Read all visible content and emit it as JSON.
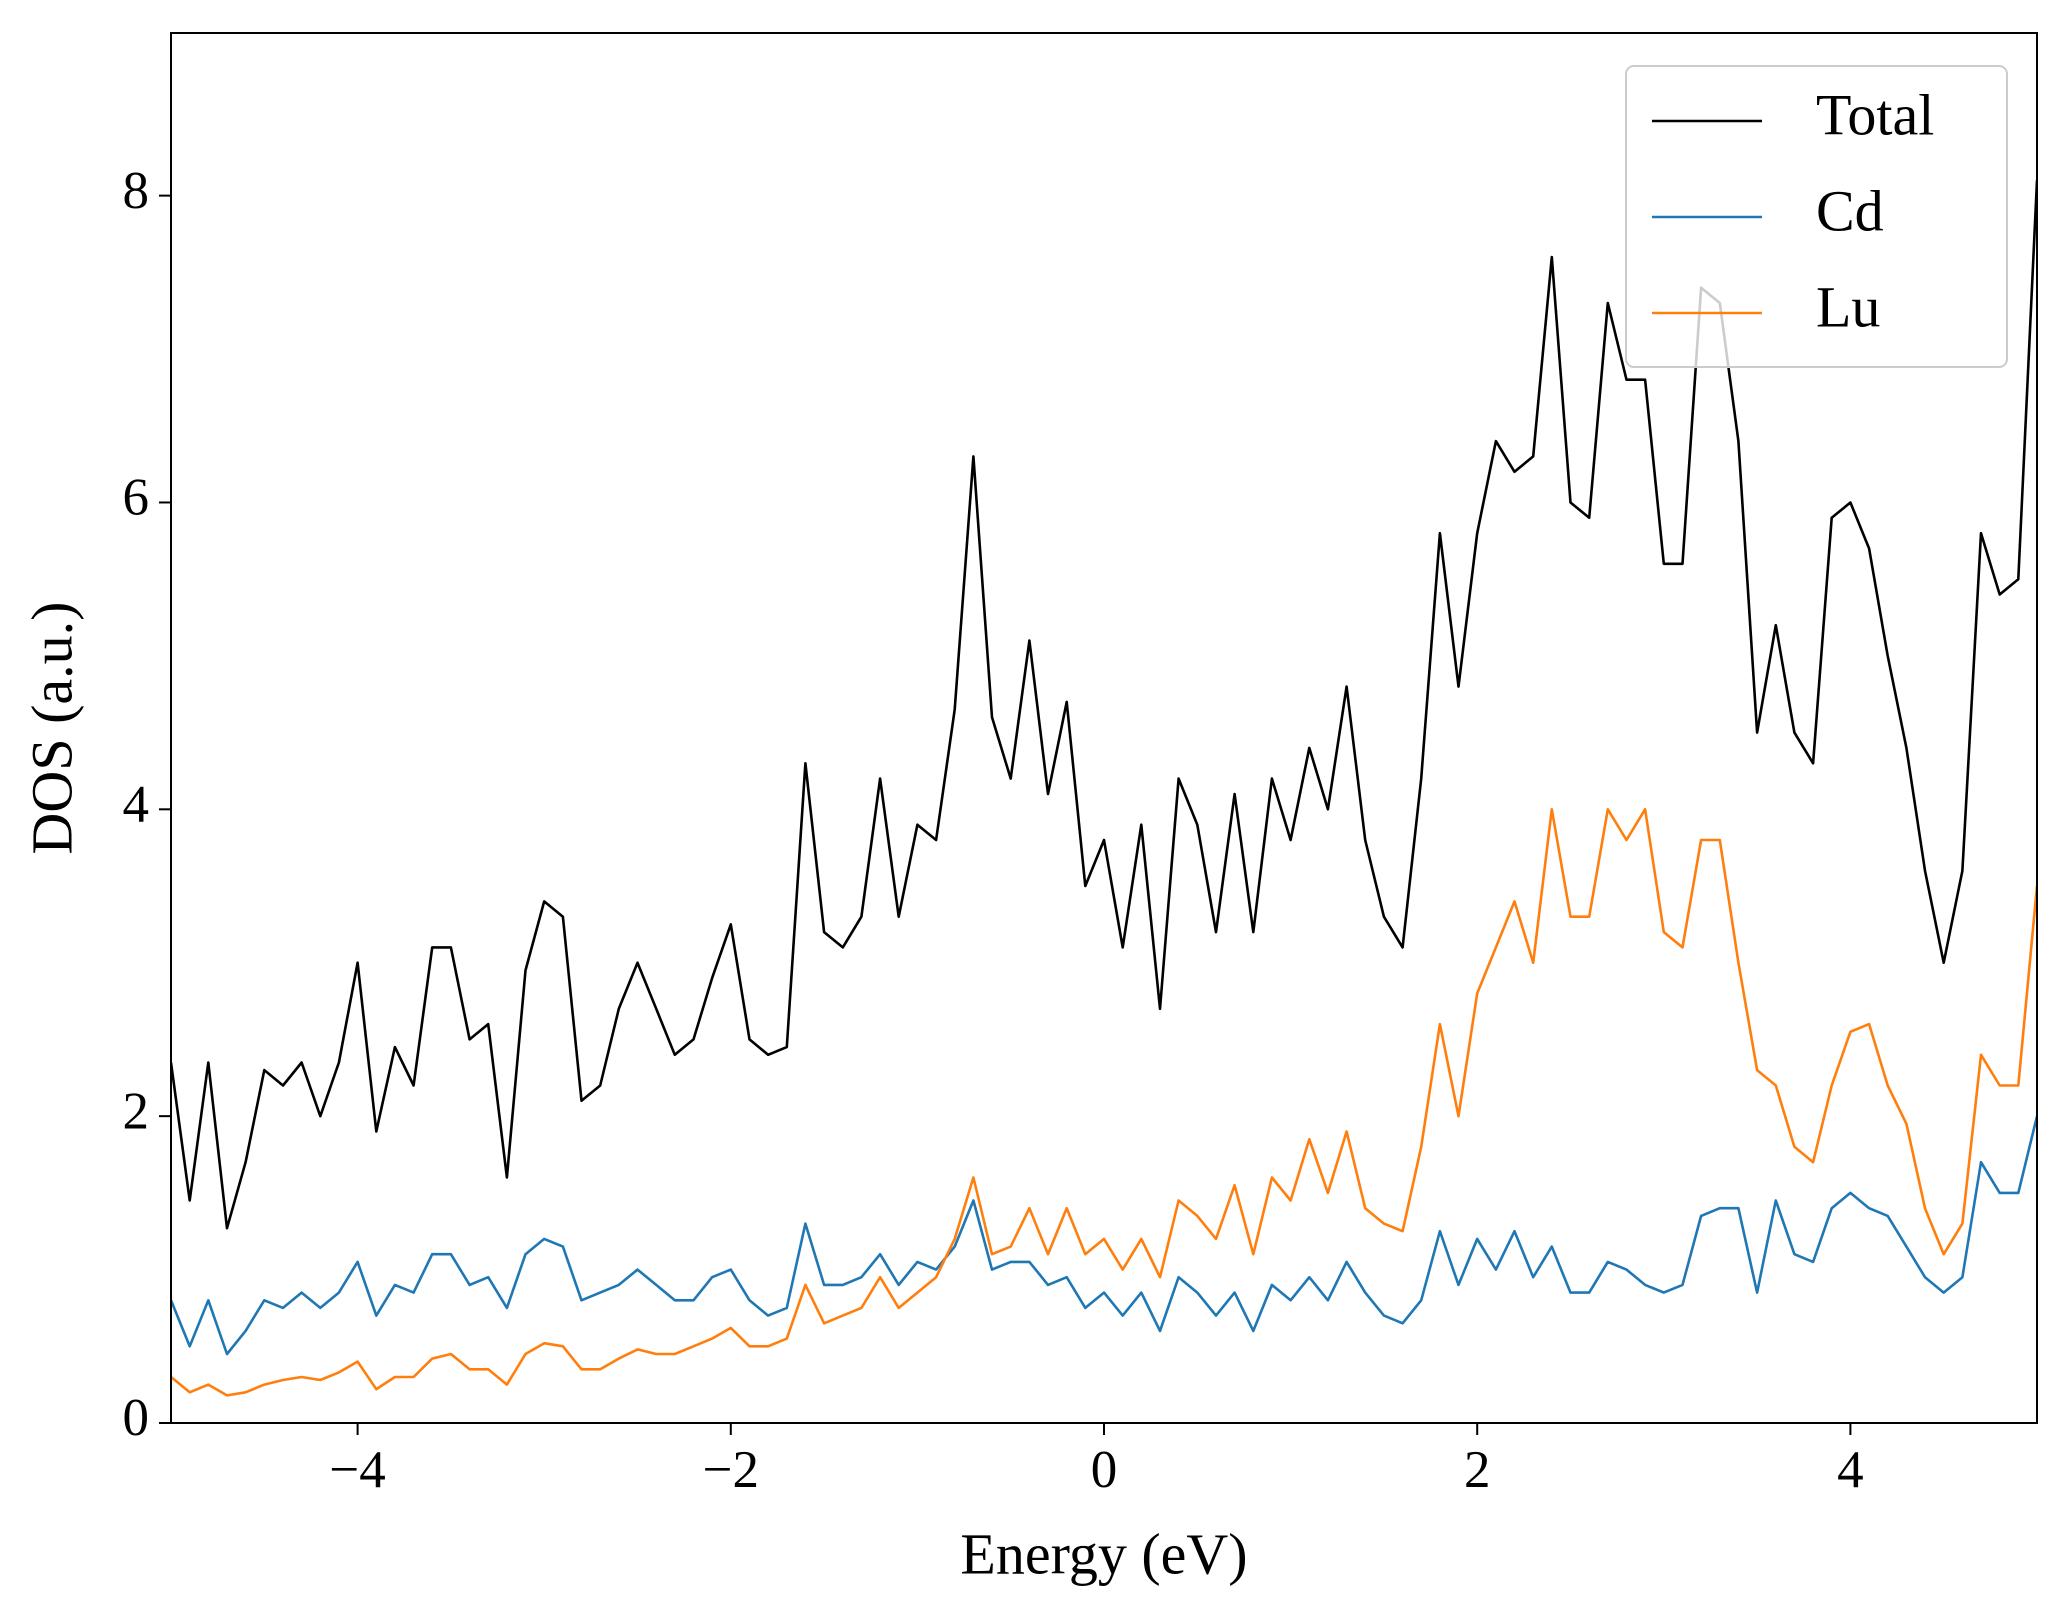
{
  "chart_data": {
    "type": "line",
    "xlabel": "Energy (eV)",
    "ylabel": "DOS (a.u.)",
    "x": [
      -5.0,
      -4.9,
      -4.8,
      -4.7,
      -4.6,
      -4.5,
      -4.4,
      -4.3,
      -4.2,
      -4.1,
      -4.0,
      -3.9,
      -3.8,
      -3.7,
      -3.6,
      -3.5,
      -3.4,
      -3.3,
      -3.2,
      -3.1,
      -3.0,
      -2.9,
      -2.8,
      -2.7,
      -2.6,
      -2.5,
      -2.4,
      -2.3,
      -2.2,
      -2.1,
      -2.0,
      -1.9,
      -1.8,
      -1.7,
      -1.6,
      -1.5,
      -1.4,
      -1.3,
      -1.2,
      -1.1,
      -1.0,
      -0.9,
      -0.8,
      -0.7,
      -0.6,
      -0.5,
      -0.4,
      -0.3,
      -0.2,
      -0.1,
      0.0,
      0.1,
      0.2,
      0.3,
      0.4,
      0.5,
      0.6,
      0.7,
      0.8,
      0.9,
      1.0,
      1.1,
      1.2,
      1.3,
      1.4,
      1.5,
      1.6,
      1.7,
      1.8,
      1.9,
      2.0,
      2.1,
      2.2,
      2.3,
      2.4,
      2.5,
      2.6,
      2.7,
      2.8,
      2.9,
      3.0,
      3.1,
      3.2,
      3.3,
      3.4,
      3.5,
      3.6,
      3.7,
      3.8,
      3.9,
      4.0,
      4.1,
      4.2,
      4.3,
      4.4,
      4.5,
      4.6,
      4.7,
      4.8,
      4.9,
      5.0
    ],
    "series": [
      {
        "name": "Total",
        "color": "#000000",
        "values": [
          2.35,
          1.45,
          2.35,
          1.27,
          1.7,
          2.3,
          2.2,
          2.35,
          2.0,
          2.35,
          3.0,
          1.9,
          2.45,
          2.2,
          3.1,
          3.1,
          2.5,
          2.6,
          1.6,
          2.95,
          3.4,
          3.3,
          2.1,
          2.2,
          2.7,
          3.0,
          2.7,
          2.4,
          2.5,
          2.9,
          3.25,
          2.5,
          2.4,
          2.45,
          4.3,
          3.2,
          3.1,
          3.3,
          4.2,
          3.3,
          3.9,
          3.8,
          4.65,
          6.3,
          4.6,
          4.2,
          5.1,
          4.1,
          4.7,
          3.5,
          3.8,
          3.1,
          3.9,
          2.7,
          4.2,
          3.9,
          3.2,
          4.1,
          3.2,
          4.2,
          3.8,
          4.4,
          4.0,
          4.8,
          3.8,
          3.3,
          3.1,
          4.2,
          5.8,
          4.8,
          5.8,
          6.4,
          6.2,
          6.3,
          7.6,
          6.0,
          5.9,
          7.3,
          6.8,
          6.8,
          5.6,
          5.6,
          7.4,
          7.3,
          6.4,
          4.5,
          5.2,
          4.5,
          4.3,
          5.9,
          6.0,
          5.7,
          5.0,
          4.4,
          3.6,
          3.0,
          3.6,
          5.8,
          5.4,
          5.5,
          8.1
        ]
      },
      {
        "name": "Cd",
        "color": "#1f77b4",
        "values": [
          0.8,
          0.5,
          0.8,
          0.45,
          0.6,
          0.8,
          0.75,
          0.85,
          0.75,
          0.85,
          1.05,
          0.7,
          0.9,
          0.85,
          1.1,
          1.1,
          0.9,
          0.95,
          0.75,
          1.1,
          1.2,
          1.15,
          0.8,
          0.85,
          0.9,
          1.0,
          0.9,
          0.8,
          0.8,
          0.95,
          1.0,
          0.8,
          0.7,
          0.75,
          1.3,
          0.9,
          0.9,
          0.95,
          1.1,
          0.9,
          1.05,
          1.0,
          1.15,
          1.45,
          1.0,
          1.05,
          1.05,
          0.9,
          0.95,
          0.75,
          0.85,
          0.7,
          0.85,
          0.6,
          0.95,
          0.85,
          0.7,
          0.85,
          0.6,
          0.9,
          0.8,
          0.95,
          0.8,
          1.05,
          0.85,
          0.7,
          0.65,
          0.8,
          1.25,
          0.9,
          1.2,
          1.0,
          1.25,
          0.95,
          1.15,
          0.85,
          0.85,
          1.05,
          1.0,
          0.9,
          0.85,
          0.9,
          1.35,
          1.4,
          1.4,
          0.85,
          1.45,
          1.1,
          1.05,
          1.4,
          1.5,
          1.4,
          1.35,
          1.15,
          0.95,
          0.85,
          0.95,
          1.7,
          1.5,
          1.5,
          2.0
        ]
      },
      {
        "name": "Lu",
        "color": "#ff7f0e",
        "values": [
          0.3,
          0.2,
          0.25,
          0.18,
          0.2,
          0.25,
          0.28,
          0.3,
          0.28,
          0.33,
          0.4,
          0.22,
          0.3,
          0.3,
          0.42,
          0.45,
          0.35,
          0.35,
          0.25,
          0.45,
          0.52,
          0.5,
          0.35,
          0.35,
          0.42,
          0.48,
          0.45,
          0.45,
          0.5,
          0.55,
          0.62,
          0.5,
          0.5,
          0.55,
          0.9,
          0.65,
          0.7,
          0.75,
          0.95,
          0.75,
          0.85,
          0.95,
          1.2,
          1.6,
          1.1,
          1.15,
          1.4,
          1.1,
          1.4,
          1.1,
          1.2,
          1.0,
          1.2,
          0.95,
          1.45,
          1.35,
          1.2,
          1.55,
          1.1,
          1.6,
          1.45,
          1.85,
          1.5,
          1.9,
          1.4,
          1.3,
          1.25,
          1.8,
          2.6,
          2.0,
          2.8,
          3.1,
          3.4,
          3.0,
          4.0,
          3.3,
          3.3,
          4.0,
          3.8,
          4.0,
          3.2,
          3.1,
          3.8,
          3.8,
          3.0,
          2.3,
          2.2,
          1.8,
          1.7,
          2.2,
          2.55,
          2.6,
          2.2,
          1.95,
          1.4,
          1.1,
          1.3,
          2.4,
          2.2,
          2.2,
          3.5
        ]
      }
    ],
    "xlim": [
      -5,
      5
    ],
    "ylim": [
      0,
      9.06
    ],
    "xticks": [
      {
        "value": -4,
        "label": "−4"
      },
      {
        "value": -2,
        "label": "−2"
      },
      0,
      2,
      4
    ],
    "yticks": [
      0,
      2,
      4,
      6,
      8
    ],
    "legend": "upper right"
  }
}
